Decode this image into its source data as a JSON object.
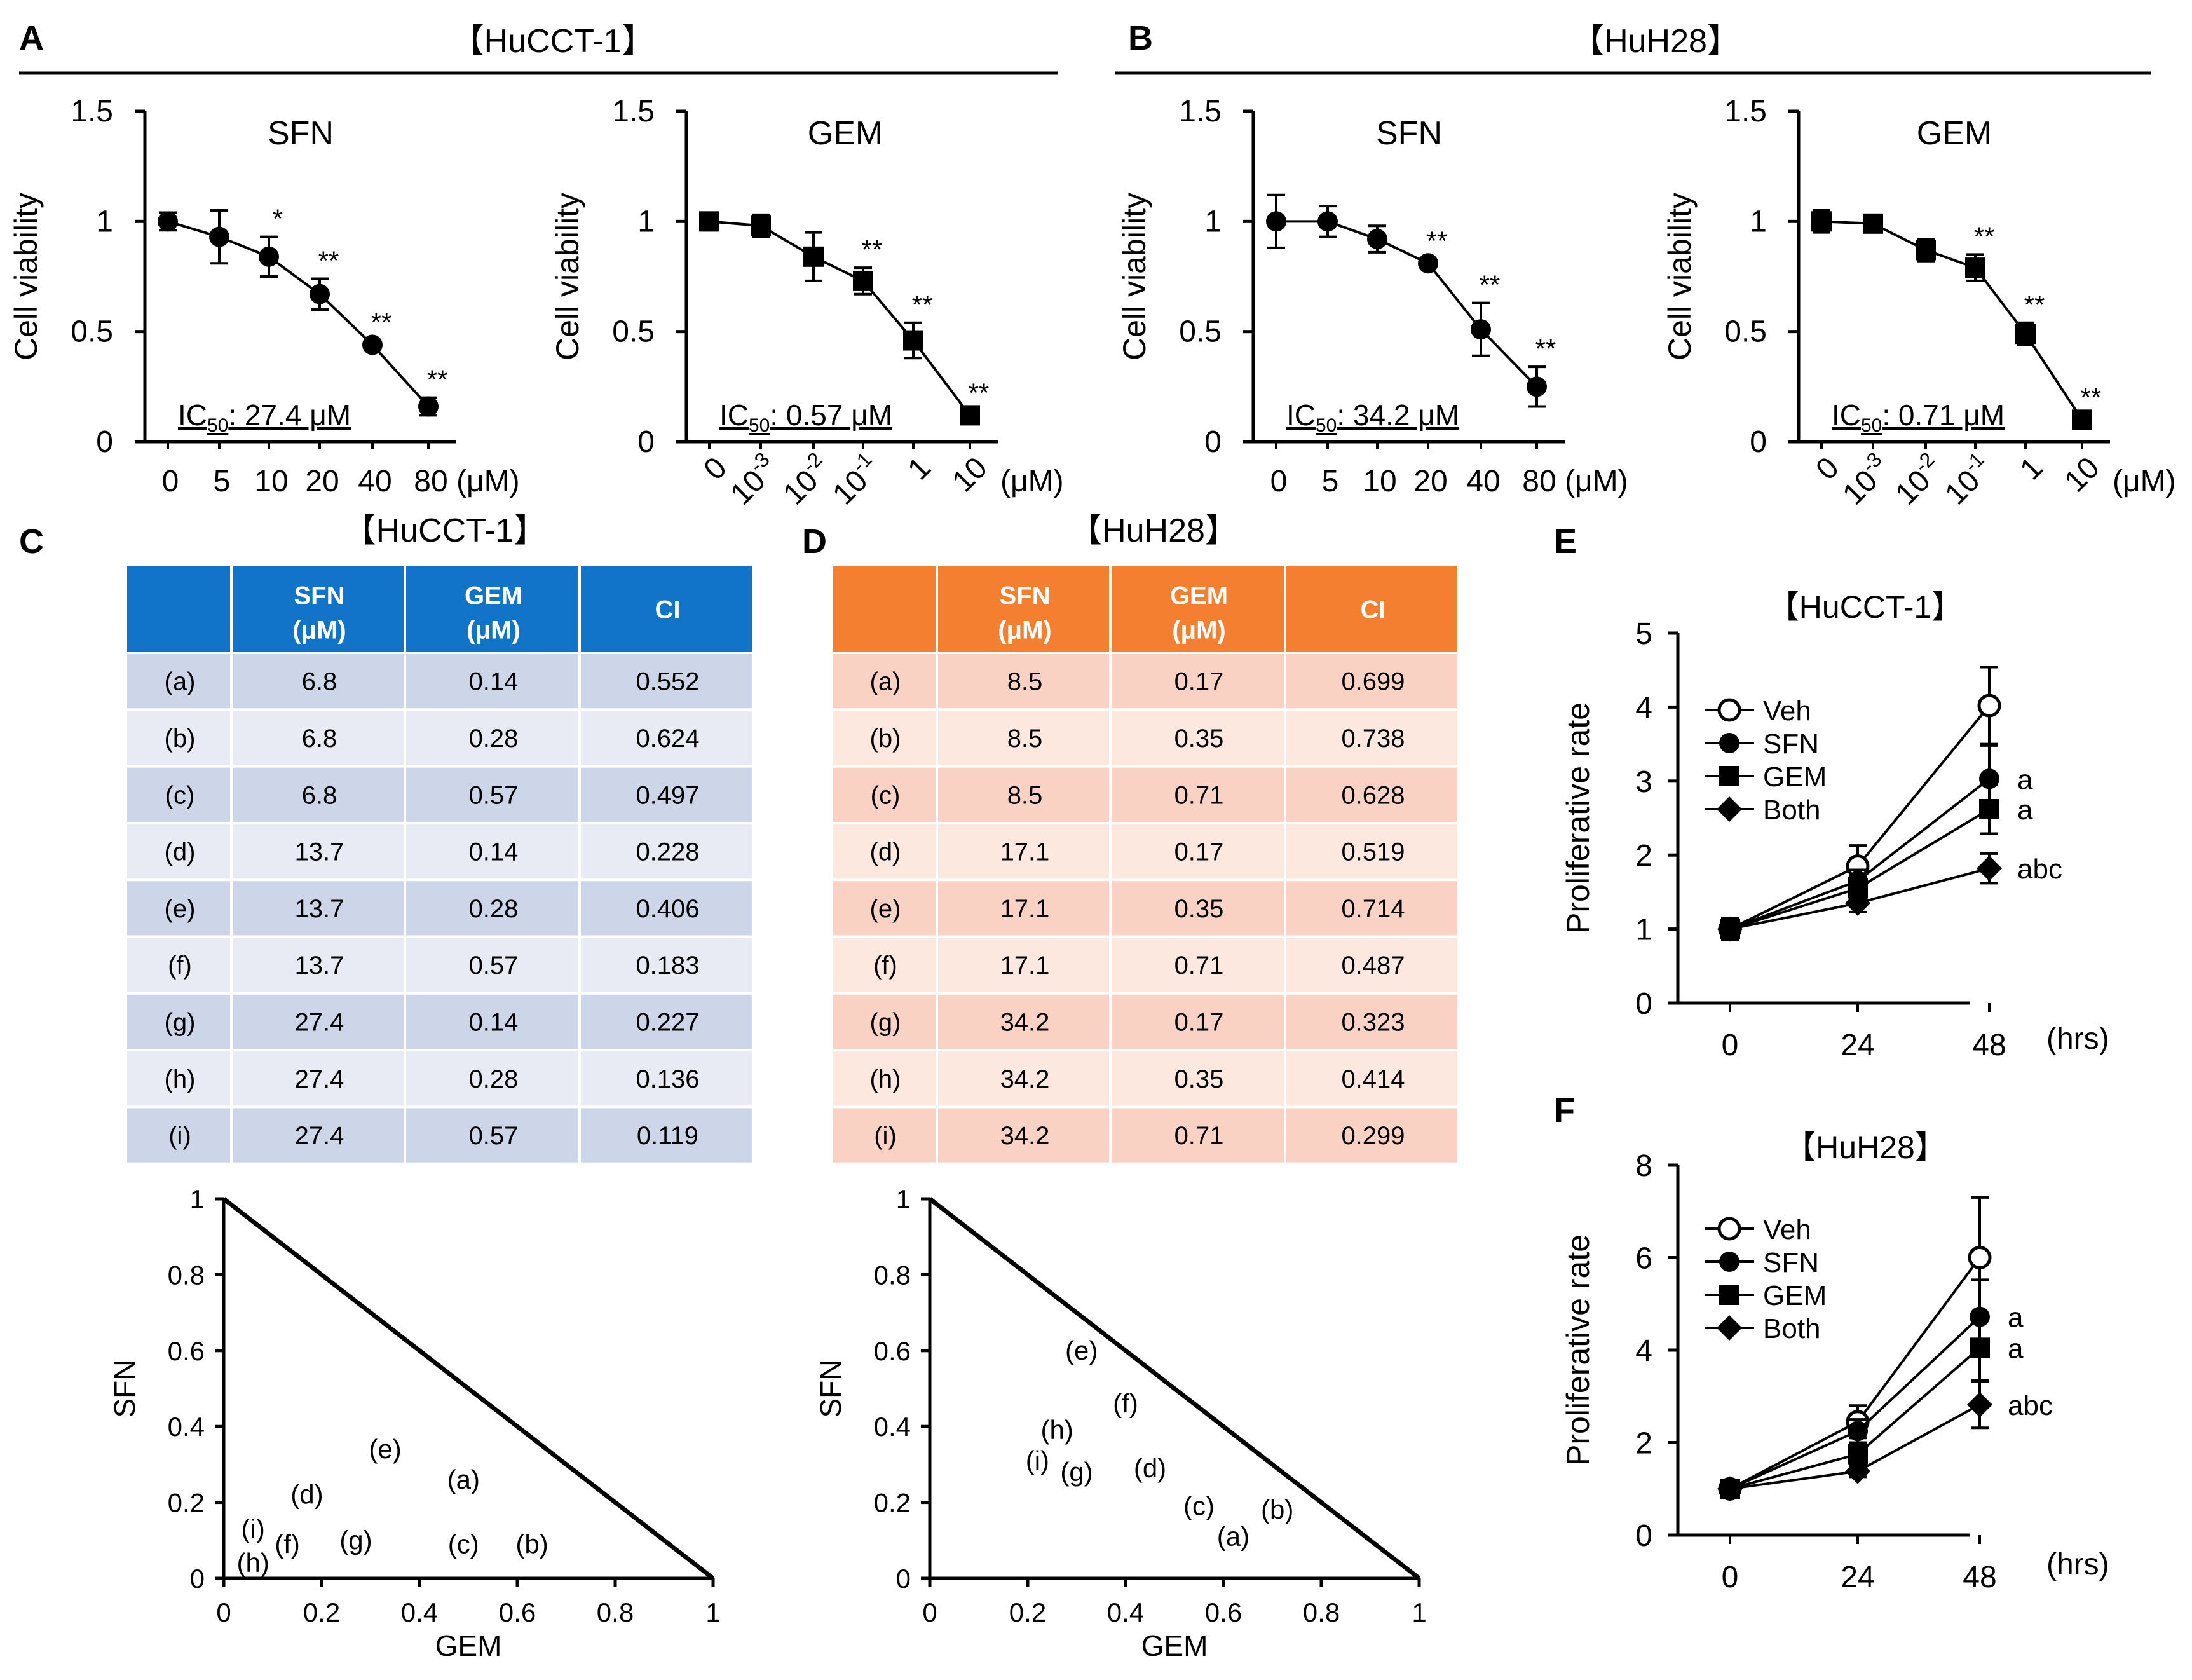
{
  "colors": {
    "hucct_header": "#1274c9",
    "hucct_row_dark": "#cdd5e8",
    "hucct_row_light": "#e8ebf4",
    "huh28_header": "#f57f30",
    "huh28_row_dark": "#fad2c4",
    "huh28_row_light": "#fde8e0",
    "line": "#000000"
  },
  "panels": {
    "A": {
      "label": "A",
      "title": "【HuCCT-1】"
    },
    "B": {
      "label": "B",
      "title": "【HuH28】"
    },
    "C": {
      "label": "C",
      "title": "【HuCCT-1】"
    },
    "D": {
      "label": "D",
      "title": "【HuH28】"
    },
    "E": {
      "label": "E",
      "title": "【HuCCT-1】"
    },
    "F": {
      "label": "F",
      "title": "【HuH28】"
    }
  },
  "chart_data": [
    {
      "id": "A1",
      "type": "line",
      "title": "SFN",
      "ylabel": "Cell viability",
      "ylim": [
        0,
        1.5
      ],
      "yticks": [
        "0",
        "0.5",
        "1",
        "1.5"
      ],
      "categories": [
        "0",
        "5",
        "10",
        "20",
        "40",
        "80"
      ],
      "unit": "(μM)",
      "rotate_ticks": false,
      "marker": "circle",
      "values": [
        1.0,
        0.93,
        0.84,
        0.67,
        0.44,
        0.16
      ],
      "errors": [
        0.04,
        0.12,
        0.09,
        0.07,
        0.02,
        0.04
      ],
      "significance": [
        "",
        "",
        "*",
        "**",
        "**",
        "**"
      ],
      "ic50": {
        "prefix": "IC",
        "sub": "50",
        "text": ": 27.4 μM"
      }
    },
    {
      "id": "A2",
      "type": "line",
      "title": "GEM",
      "ylabel": "Cell viability",
      "ylim": [
        0,
        1.5
      ],
      "yticks": [
        "0",
        "0.5",
        "1",
        "1.5"
      ],
      "categories": [
        {
          "b": "0"
        },
        {
          "b": "10",
          "e": "-3"
        },
        {
          "b": "10",
          "e": "-2"
        },
        {
          "b": "10",
          "e": "-1"
        },
        {
          "b": "1"
        },
        {
          "b": "10"
        }
      ],
      "unit": "(μM)",
      "rotate_ticks": true,
      "marker": "square",
      "values": [
        1.0,
        0.98,
        0.84,
        0.73,
        0.46,
        0.12
      ],
      "errors": [
        0.04,
        0.05,
        0.11,
        0.06,
        0.08,
        0.02
      ],
      "significance": [
        "",
        "",
        "",
        "**",
        "**",
        "**"
      ],
      "ic50": {
        "prefix": "IC",
        "sub": "50",
        "text": ": 0.57 μM"
      }
    },
    {
      "id": "B1",
      "type": "line",
      "title": "SFN",
      "ylabel": "Cell viability",
      "ylim": [
        0,
        1.5
      ],
      "yticks": [
        "0",
        "0.5",
        "1",
        "1.5"
      ],
      "categories": [
        "0",
        "5",
        "10",
        "20",
        "40",
        "80"
      ],
      "unit": "(μM)",
      "rotate_ticks": false,
      "marker": "circle",
      "values": [
        1.0,
        1.0,
        0.92,
        0.81,
        0.51,
        0.25
      ],
      "errors": [
        0.12,
        0.07,
        0.06,
        0.02,
        0.12,
        0.09
      ],
      "significance": [
        "",
        "",
        "",
        "**",
        "**",
        "**"
      ],
      "ic50": {
        "prefix": "IC",
        "sub": "50",
        "text": ": 34.2 μM"
      }
    },
    {
      "id": "B2",
      "type": "line",
      "title": "GEM",
      "ylabel": "Cell viability",
      "ylim": [
        0,
        1.5
      ],
      "yticks": [
        "0",
        "0.5",
        "1",
        "1.5"
      ],
      "categories": [
        {
          "b": "0"
        },
        {
          "b": "10",
          "e": "-3"
        },
        {
          "b": "10",
          "e": "-2"
        },
        {
          "b": "10",
          "e": "-1"
        },
        {
          "b": "1"
        },
        {
          "b": "10"
        }
      ],
      "unit": "(μM)",
      "rotate_ticks": true,
      "marker": "square",
      "values": [
        1.0,
        0.99,
        0.87,
        0.79,
        0.49,
        0.1
      ],
      "errors": [
        0.05,
        0.03,
        0.05,
        0.06,
        0.05,
        0.02
      ],
      "significance": [
        "",
        "",
        "",
        "**",
        "**",
        "**"
      ],
      "ic50": {
        "prefix": "IC",
        "sub": "50",
        "text": ": 0.71 μM"
      }
    },
    {
      "id": "C_table",
      "type": "table",
      "headers": [
        "",
        "SFN\n(μM)",
        "GEM\n(μM)",
        "CI"
      ],
      "rows": [
        [
          "(a)",
          "6.8",
          "0.14",
          "0.552"
        ],
        [
          "(b)",
          "6.8",
          "0.28",
          "0.624"
        ],
        [
          "(c)",
          "6.8",
          "0.57",
          "0.497"
        ],
        [
          "(d)",
          "13.7",
          "0.14",
          "0.228"
        ],
        [
          "(e)",
          "13.7",
          "0.28",
          "0.406"
        ],
        [
          "(f)",
          "13.7",
          "0.57",
          "0.183"
        ],
        [
          "(g)",
          "27.4",
          "0.14",
          "0.227"
        ],
        [
          "(h)",
          "27.4",
          "0.28",
          "0.136"
        ],
        [
          "(i)",
          "27.4",
          "0.57",
          "0.119"
        ]
      ]
    },
    {
      "id": "D_table",
      "type": "table",
      "headers": [
        "",
        "SFN\n(μM)",
        "GEM\n(μM)",
        "CI"
      ],
      "rows": [
        [
          "(a)",
          "8.5",
          "0.17",
          "0.699"
        ],
        [
          "(b)",
          "8.5",
          "0.35",
          "0.738"
        ],
        [
          "(c)",
          "8.5",
          "0.71",
          "0.628"
        ],
        [
          "(d)",
          "17.1",
          "0.17",
          "0.519"
        ],
        [
          "(e)",
          "17.1",
          "0.35",
          "0.714"
        ],
        [
          "(f)",
          "17.1",
          "0.71",
          "0.487"
        ],
        [
          "(g)",
          "34.2",
          "0.17",
          "0.323"
        ],
        [
          "(h)",
          "34.2",
          "0.35",
          "0.414"
        ],
        [
          "(i)",
          "34.2",
          "0.71",
          "0.299"
        ]
      ]
    },
    {
      "id": "C_iso",
      "type": "scatter",
      "xlabel": "GEM",
      "ylabel": "SFN",
      "xlim": [
        0,
        1
      ],
      "ylim": [
        0,
        1
      ],
      "xticks": [
        "0",
        "0.2",
        "0.4",
        "0.6",
        "0.8",
        "1"
      ],
      "yticks": [
        "0",
        "0.2",
        "0.4",
        "0.6",
        "0.8",
        "1"
      ],
      "points": [
        {
          "label": "(a)",
          "x": 0.49,
          "y": 0.26
        },
        {
          "label": "(b)",
          "x": 0.63,
          "y": 0.09
        },
        {
          "label": "(c)",
          "x": 0.49,
          "y": 0.09
        },
        {
          "label": "(d)",
          "x": 0.17,
          "y": 0.22
        },
        {
          "label": "(e)",
          "x": 0.33,
          "y": 0.34
        },
        {
          "label": "(f)",
          "x": 0.13,
          "y": 0.09
        },
        {
          "label": "(g)",
          "x": 0.27,
          "y": 0.1
        },
        {
          "label": "(h)",
          "x": 0.06,
          "y": 0.04
        },
        {
          "label": "(i)",
          "x": 0.06,
          "y": 0.13
        }
      ]
    },
    {
      "id": "D_iso",
      "type": "scatter",
      "xlabel": "GEM",
      "ylabel": "SFN",
      "xlim": [
        0,
        1
      ],
      "ylim": [
        0,
        1
      ],
      "xticks": [
        "0",
        "0.2",
        "0.4",
        "0.6",
        "0.8",
        "1"
      ],
      "yticks": [
        "0",
        "0.2",
        "0.4",
        "0.6",
        "0.8",
        "1"
      ],
      "points": [
        {
          "label": "(a)",
          "x": 0.62,
          "y": 0.11
        },
        {
          "label": "(b)",
          "x": 0.71,
          "y": 0.18
        },
        {
          "label": "(c)",
          "x": 0.55,
          "y": 0.19
        },
        {
          "label": "(d)",
          "x": 0.45,
          "y": 0.29
        },
        {
          "label": "(e)",
          "x": 0.31,
          "y": 0.6
        },
        {
          "label": "(f)",
          "x": 0.4,
          "y": 0.46
        },
        {
          "label": "(g)",
          "x": 0.3,
          "y": 0.28
        },
        {
          "label": "(h)",
          "x": 0.26,
          "y": 0.39
        },
        {
          "label": "(i)",
          "x": 0.22,
          "y": 0.31
        }
      ]
    },
    {
      "id": "E",
      "type": "line",
      "ylabel": "Proliferative rate",
      "ylim": [
        0,
        5
      ],
      "yticks": [
        "0",
        "1",
        "2",
        "3",
        "4",
        "5"
      ],
      "categories": [
        "0",
        "24",
        "48"
      ],
      "unit": "(hrs)",
      "series": [
        {
          "name": "Veh",
          "marker": "open-circle",
          "values": [
            1.0,
            1.85,
            4.02
          ],
          "errors": [
            0.15,
            0.28,
            0.52
          ],
          "annotation": ""
        },
        {
          "name": "SFN",
          "marker": "circle",
          "values": [
            1.0,
            1.65,
            3.03
          ],
          "errors": [
            0.12,
            0.15,
            0.45
          ],
          "annotation": "a"
        },
        {
          "name": "GEM",
          "marker": "square",
          "values": [
            1.0,
            1.55,
            2.62
          ],
          "errors": [
            0.1,
            0.15,
            0.33
          ],
          "annotation": "a"
        },
        {
          "name": "Both",
          "marker": "diamond",
          "values": [
            1.0,
            1.35,
            1.82
          ],
          "errors": [
            0.1,
            0.12,
            0.2
          ],
          "annotation": "abc"
        }
      ]
    },
    {
      "id": "F",
      "type": "line",
      "ylabel": "Proliferative rate",
      "ylim": [
        0,
        8
      ],
      "yticks": [
        "0",
        "2",
        "4",
        "6",
        "8"
      ],
      "categories": [
        "0",
        "24",
        "48"
      ],
      "unit": "(hrs)",
      "series": [
        {
          "name": "Veh",
          "marker": "open-circle",
          "values": [
            1.0,
            2.45,
            6.0
          ],
          "errors": [
            0.1,
            0.35,
            1.3
          ],
          "annotation": ""
        },
        {
          "name": "SFN",
          "marker": "circle",
          "values": [
            1.0,
            2.25,
            4.72
          ],
          "errors": [
            0.1,
            0.25,
            0.8
          ],
          "annotation": "a"
        },
        {
          "name": "GEM",
          "marker": "square",
          "values": [
            1.0,
            1.75,
            4.05
          ],
          "errors": [
            0.1,
            0.2,
            0.7
          ],
          "annotation": "a"
        },
        {
          "name": "Both",
          "marker": "diamond",
          "values": [
            1.0,
            1.38,
            2.82
          ],
          "errors": [
            0.08,
            0.12,
            0.5
          ],
          "annotation": "abc"
        }
      ]
    }
  ]
}
